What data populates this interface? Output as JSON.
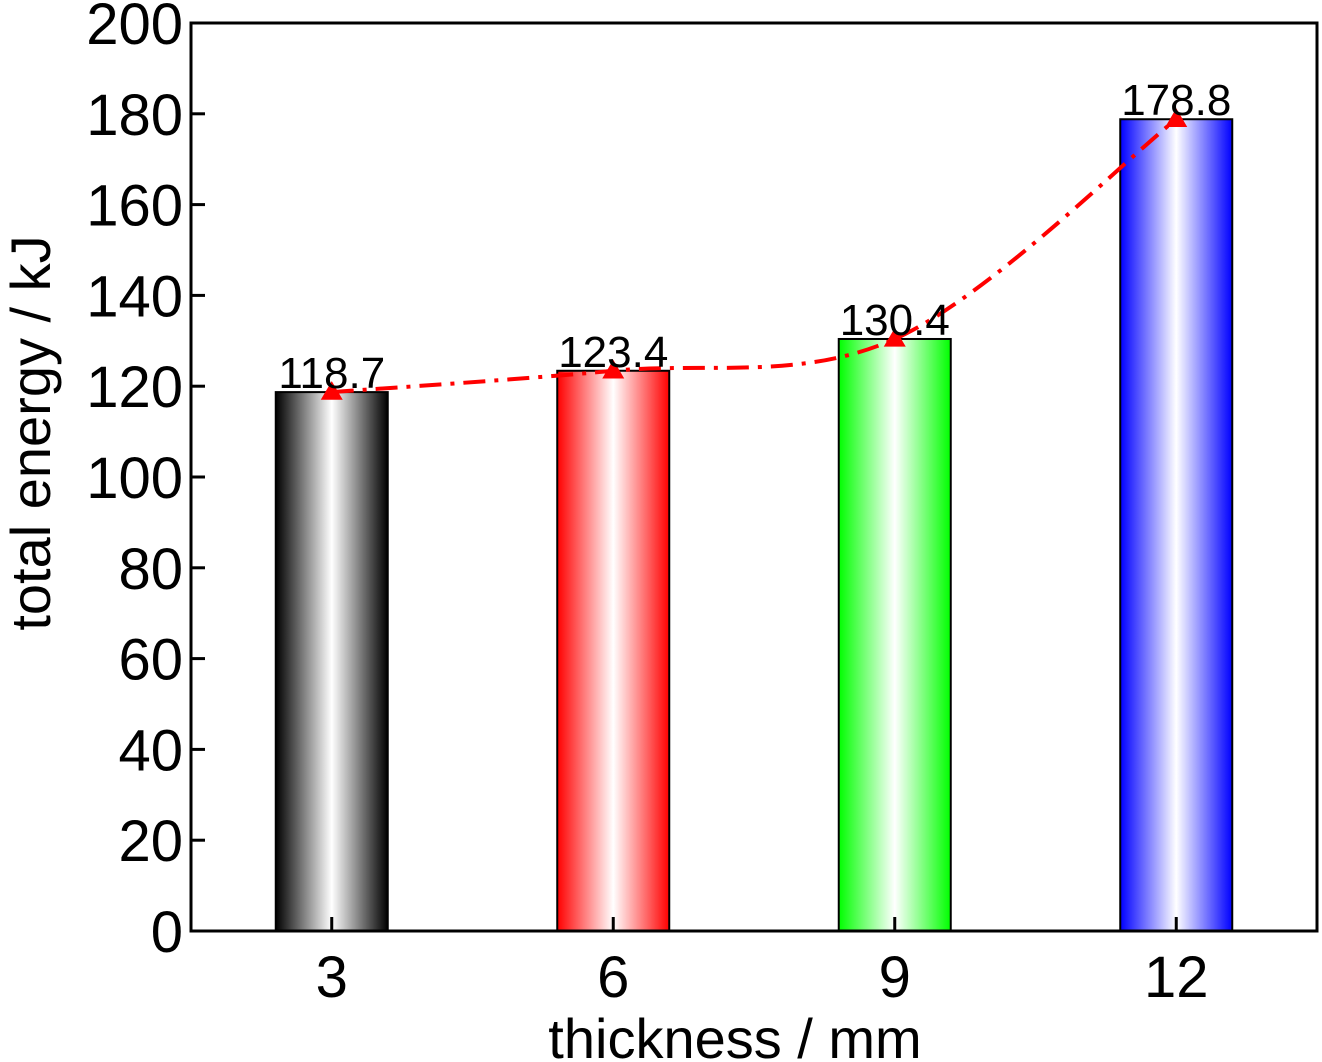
{
  "chart_data": {
    "type": "bar",
    "title": "",
    "xlabel": "thickness / mm",
    "ylabel": "total energy / kJ",
    "categories": [
      "3",
      "6",
      "9",
      "12"
    ],
    "values": [
      118.7,
      123.4,
      130.4,
      178.8
    ],
    "data_labels": [
      "118.7",
      "123.4",
      "130.4",
      "178.8"
    ],
    "ylim": [
      0,
      200
    ],
    "yticks": [
      "0",
      "20",
      "40",
      "60",
      "80",
      "100",
      "120",
      "140",
      "160",
      "180",
      "200"
    ],
    "bar_colors": [
      "#000000",
      "#ff0000",
      "#00ff00",
      "#0000ff"
    ],
    "trend_line": {
      "style": "dash-dot",
      "marker": "triangle",
      "color": "#ff0000"
    },
    "grid": false,
    "legend": "none"
  }
}
